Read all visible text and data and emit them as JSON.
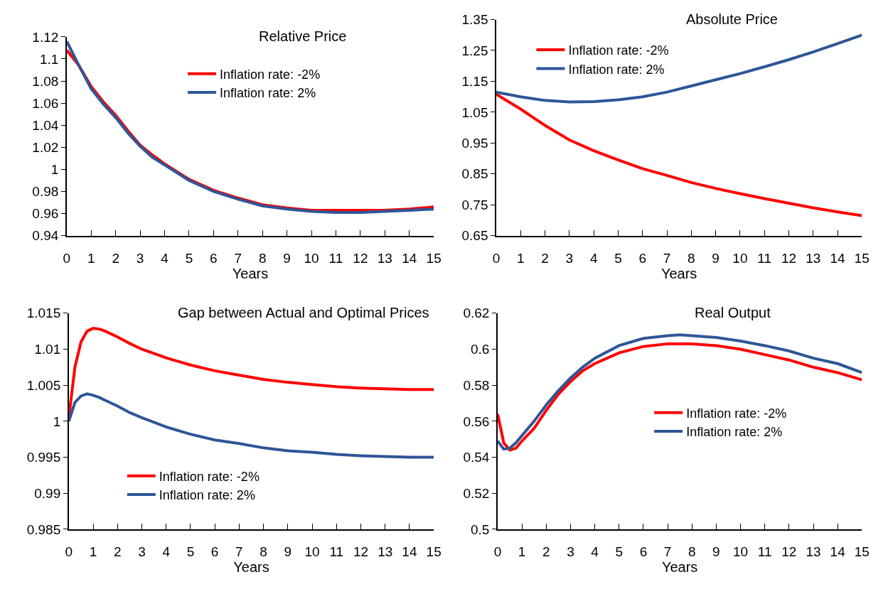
{
  "chart_data": [
    {
      "type": "line",
      "title": "Relative Price",
      "xlabel": "Years",
      "xlim": [
        0,
        15
      ],
      "xticks": [
        0,
        1,
        2,
        3,
        4,
        5,
        6,
        7,
        8,
        9,
        10,
        11,
        12,
        13,
        14,
        15
      ],
      "ylim": [
        0.94,
        1.12
      ],
      "yticks": [
        0.94,
        0.96,
        0.98,
        1,
        1.02,
        1.04,
        1.06,
        1.08,
        1.1,
        1.12
      ],
      "legend": "top",
      "x": [
        0,
        0.5,
        1,
        1.5,
        2,
        2.5,
        3,
        3.5,
        4,
        5,
        6,
        7,
        8,
        9,
        10,
        11,
        12,
        13,
        14,
        15
      ],
      "series": [
        {
          "name": "Inflation rate: -2%",
          "color": "#ff0000",
          "values": [
            1.108,
            1.094,
            1.075,
            1.061,
            1.049,
            1.035,
            1.022,
            1.013,
            1.005,
            0.991,
            0.981,
            0.974,
            0.968,
            0.965,
            0.963,
            0.963,
            0.963,
            0.963,
            0.964,
            0.966
          ]
        },
        {
          "name": "Inflation rate: 2%",
          "color": "#2f5597",
          "values": [
            1.116,
            1.094,
            1.073,
            1.059,
            1.047,
            1.033,
            1.021,
            1.011,
            1.004,
            0.99,
            0.98,
            0.973,
            0.967,
            0.964,
            0.962,
            0.961,
            0.961,
            0.962,
            0.963,
            0.964
          ]
        }
      ]
    },
    {
      "type": "line",
      "title": "Absolute Price",
      "xlabel": "Years",
      "xlim": [
        0,
        15
      ],
      "xticks": [
        0,
        1,
        2,
        3,
        4,
        5,
        6,
        7,
        8,
        9,
        10,
        11,
        12,
        13,
        14,
        15
      ],
      "ylim": [
        0.65,
        1.35
      ],
      "yticks": [
        0.65,
        0.75,
        0.85,
        0.95,
        1.05,
        1.15,
        1.25,
        1.35
      ],
      "legend": "top left",
      "x": [
        0,
        1,
        2,
        3,
        4,
        5,
        6,
        7,
        8,
        9,
        10,
        11,
        12,
        13,
        14,
        15
      ],
      "series": [
        {
          "name": "Inflation rate: -2%",
          "color": "#ff0000",
          "values": [
            1.108,
            1.06,
            1.007,
            0.96,
            0.925,
            0.895,
            0.867,
            0.845,
            0.822,
            0.803,
            0.786,
            0.77,
            0.755,
            0.74,
            0.727,
            0.715
          ]
        },
        {
          "name": "Inflation rate: 2%",
          "color": "#2f5597",
          "values": [
            1.115,
            1.1,
            1.088,
            1.083,
            1.084,
            1.09,
            1.1,
            1.115,
            1.135,
            1.155,
            1.175,
            1.197,
            1.22,
            1.245,
            1.272,
            1.3
          ]
        }
      ]
    },
    {
      "type": "line",
      "title": "Gap between Actual and Optimal Prices",
      "xlabel": "Years",
      "xlim": [
        0,
        15
      ],
      "xticks": [
        0,
        1,
        2,
        3,
        4,
        5,
        6,
        7,
        8,
        9,
        10,
        11,
        12,
        13,
        14,
        15
      ],
      "ylim": [
        0.985,
        1.015
      ],
      "yticks": [
        0.985,
        0.99,
        0.995,
        1,
        1.005,
        1.01,
        1.015
      ],
      "legend": "bottom left",
      "x": [
        0,
        0.25,
        0.5,
        0.75,
        1,
        1.25,
        1.5,
        2,
        2.5,
        3,
        4,
        5,
        6,
        7,
        8,
        9,
        10,
        11,
        12,
        13,
        14,
        15
      ],
      "series": [
        {
          "name": "Inflation rate: -2%",
          "color": "#ff0000",
          "values": [
            1.0005,
            1.0075,
            1.011,
            1.0125,
            1.0129,
            1.0128,
            1.0125,
            1.0117,
            1.0108,
            1.01,
            1.0088,
            1.0078,
            1.007,
            1.0064,
            1.0058,
            1.0054,
            1.0051,
            1.0048,
            1.0046,
            1.0045,
            1.0044,
            1.0044
          ]
        },
        {
          "name": "Inflation rate: 2%",
          "color": "#2f5597",
          "values": [
            1.0,
            1.0026,
            1.0035,
            1.0038,
            1.0036,
            1.0033,
            1.0029,
            1.0021,
            1.0012,
            1.0005,
            0.9992,
            0.9982,
            0.9974,
            0.9969,
            0.9963,
            0.9959,
            0.9957,
            0.9954,
            0.9952,
            0.9951,
            0.995,
            0.995
          ]
        }
      ]
    },
    {
      "type": "line",
      "title": "Real Output",
      "xlabel": "Years",
      "xlim": [
        0,
        15
      ],
      "xticks": [
        0,
        1,
        2,
        3,
        4,
        5,
        6,
        7,
        8,
        9,
        10,
        11,
        12,
        13,
        14,
        15
      ],
      "ylim": [
        0.5,
        0.62
      ],
      "yticks": [
        0.5,
        0.52,
        0.54,
        0.56,
        0.58,
        0.6,
        0.62
      ],
      "legend": "right",
      "x": [
        0,
        0.25,
        0.5,
        0.75,
        1,
        1.5,
        2,
        2.5,
        3,
        3.5,
        4,
        5,
        6,
        7,
        7.5,
        8,
        9,
        10,
        11,
        12,
        13,
        14,
        15
      ],
      "series": [
        {
          "name": "Inflation rate: -2%",
          "color": "#ff0000",
          "values": [
            0.564,
            0.548,
            0.544,
            0.545,
            0.549,
            0.556,
            0.566,
            0.575,
            0.582,
            0.588,
            0.592,
            0.598,
            0.6015,
            0.603,
            0.603,
            0.603,
            0.602,
            0.6,
            0.597,
            0.594,
            0.59,
            0.587,
            0.583
          ]
        },
        {
          "name": "Inflation rate: 2%",
          "color": "#2f5597",
          "values": [
            0.549,
            0.5445,
            0.545,
            0.548,
            0.552,
            0.56,
            0.569,
            0.577,
            0.584,
            0.59,
            0.595,
            0.602,
            0.606,
            0.6075,
            0.608,
            0.6075,
            0.6065,
            0.6045,
            0.602,
            0.599,
            0.595,
            0.592,
            0.587
          ]
        }
      ]
    }
  ]
}
